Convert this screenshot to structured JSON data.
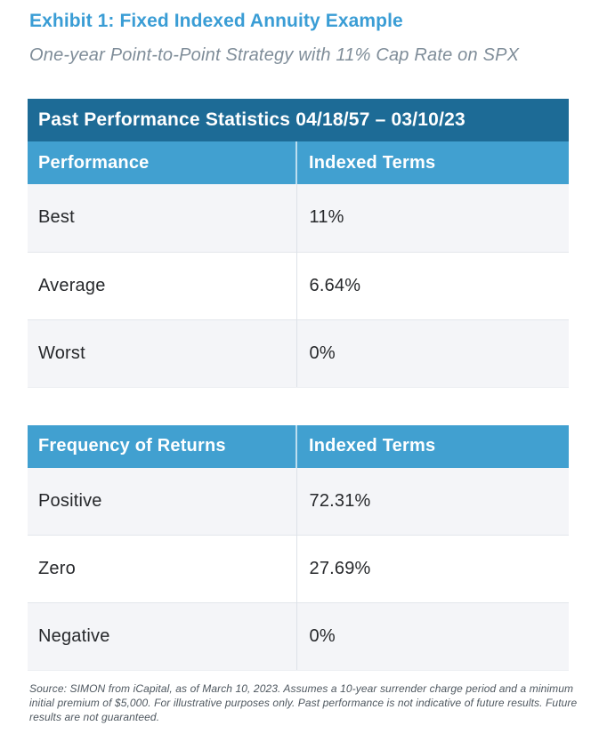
{
  "header": {
    "title": "Exhibit 1: Fixed Indexed Annuity Example",
    "subtitle": "One-year Point-to-Point Strategy with 11% Cap Rate on SPX"
  },
  "colors": {
    "title_blue": "#3A9DD5",
    "dark_header": "#1D6B96",
    "light_header": "#41A0D0",
    "row_alt": "#F4F5F8",
    "subtitle_gray": "#7F8D99"
  },
  "table1": {
    "title": "Past Performance Statistics 04/18/57 – 03/10/23",
    "columns": [
      "Performance",
      "Indexed Terms"
    ],
    "rows": [
      {
        "label": "Best",
        "value": "11%"
      },
      {
        "label": "Average",
        "value": "6.64%"
      },
      {
        "label": "Worst",
        "value": "0%"
      }
    ]
  },
  "table2": {
    "columns": [
      "Frequency of Returns",
      "Indexed Terms"
    ],
    "rows": [
      {
        "label": "Positive",
        "value": "72.31%"
      },
      {
        "label": "Zero",
        "value": "27.69%"
      },
      {
        "label": "Negative",
        "value": "0%"
      }
    ]
  },
  "footnote": {
    "text": "Source: SIMON from iCapital, as of March 10, 2023. Assumes a 10-year surrender charge period and a minimum initial premium of $5,000. For illustrative purposes only. Past performance is not indicative of future results. Future results are not guaranteed."
  }
}
